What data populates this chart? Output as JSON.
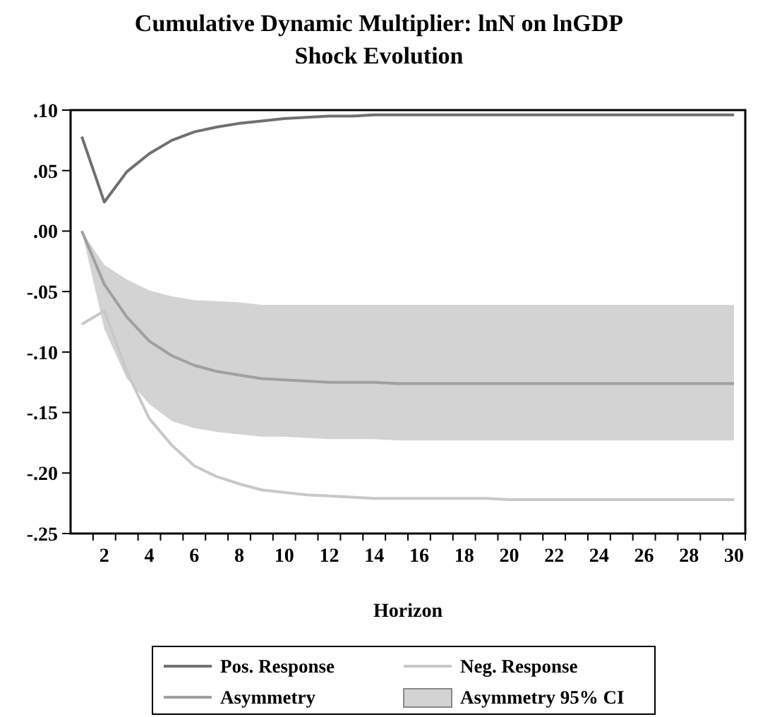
{
  "chart_data": {
    "type": "line",
    "title": "Cumulative Dynamic Multiplier: lnN on lnGDP",
    "subtitle": "Shock Evolution",
    "xlabel": "Horizon",
    "x": [
      1,
      2,
      3,
      4,
      5,
      6,
      7,
      8,
      9,
      10,
      11,
      12,
      13,
      14,
      15,
      16,
      17,
      18,
      19,
      20,
      21,
      22,
      23,
      24,
      25,
      26,
      27,
      28,
      29,
      30
    ],
    "xlim": [
      0.5,
      30.5
    ],
    "xticks": [
      2,
      4,
      6,
      8,
      10,
      12,
      14,
      16,
      18,
      20,
      22,
      24,
      26,
      28,
      30
    ],
    "ylim": [
      -0.25,
      0.1
    ],
    "yticks": [
      {
        "value": -0.25,
        "label": "-.25"
      },
      {
        "value": -0.2,
        "label": "-.20"
      },
      {
        "value": -0.15,
        "label": "-.15"
      },
      {
        "value": -0.1,
        "label": "-.10"
      },
      {
        "value": -0.05,
        "label": "-.05"
      },
      {
        "value": 0,
        "label": ".00"
      },
      {
        "value": 0.05,
        "label": ".05"
      },
      {
        "value": 0.1,
        "label": ".10"
      }
    ],
    "annotations": [
      "Asymmetry 95% CI"
    ],
    "grid": false,
    "legend": "bottom",
    "marker": "none",
    "line_style": "solid",
    "series": [
      {
        "name": "Pos. Response",
        "color": "#707070",
        "values": [
          0.078,
          0.024,
          0.049,
          0.064,
          0.075,
          0.082,
          0.086,
          0.089,
          0.091,
          0.093,
          0.094,
          0.095,
          0.095,
          0.096,
          0.096,
          0.096,
          0.096,
          0.096,
          0.096,
          0.096,
          0.096,
          0.096,
          0.096,
          0.096,
          0.096,
          0.096,
          0.096,
          0.096,
          0.096,
          0.096
        ]
      },
      {
        "name": "Neg. Response",
        "color": "#c8c8c8",
        "values": [
          -0.077,
          -0.066,
          -0.116,
          -0.155,
          -0.177,
          -0.194,
          -0.203,
          -0.209,
          -0.214,
          -0.216,
          -0.218,
          -0.219,
          -0.22,
          -0.221,
          -0.221,
          -0.221,
          -0.221,
          -0.221,
          -0.221,
          -0.222,
          -0.222,
          -0.222,
          -0.222,
          -0.222,
          -0.222,
          -0.222,
          -0.222,
          -0.222,
          -0.222,
          -0.222
        ]
      },
      {
        "name": "Asymmetry",
        "color": "#a0a0a0",
        "values": [
          0,
          -0.044,
          -0.071,
          -0.091,
          -0.103,
          -0.111,
          -0.116,
          -0.119,
          -0.122,
          -0.123,
          -0.124,
          -0.125,
          -0.125,
          -0.125,
          -0.126,
          -0.126,
          -0.126,
          -0.126,
          -0.126,
          -0.126,
          -0.126,
          -0.126,
          -0.126,
          -0.126,
          -0.126,
          -0.126,
          -0.126,
          -0.126,
          -0.126,
          -0.126
        ],
        "lower": [
          0,
          -0.081,
          -0.122,
          -0.143,
          -0.157,
          -0.163,
          -0.166,
          -0.168,
          -0.17,
          -0.17,
          -0.171,
          -0.172,
          -0.172,
          -0.172,
          -0.173,
          -0.173,
          -0.173,
          -0.173,
          -0.173,
          -0.173,
          -0.173,
          -0.173,
          -0.173,
          -0.173,
          -0.173,
          -0.173,
          -0.173,
          -0.173,
          -0.173,
          -0.173
        ],
        "upper": [
          0,
          -0.028,
          -0.04,
          -0.049,
          -0.054,
          -0.057,
          -0.058,
          -0.059,
          -0.061,
          -0.061,
          -0.061,
          -0.061,
          -0.061,
          -0.061,
          -0.061,
          -0.061,
          -0.061,
          -0.061,
          -0.061,
          -0.061,
          -0.061,
          -0.061,
          -0.061,
          -0.061,
          -0.061,
          -0.061,
          -0.061,
          -0.061,
          -0.061,
          -0.061
        ]
      }
    ]
  }
}
